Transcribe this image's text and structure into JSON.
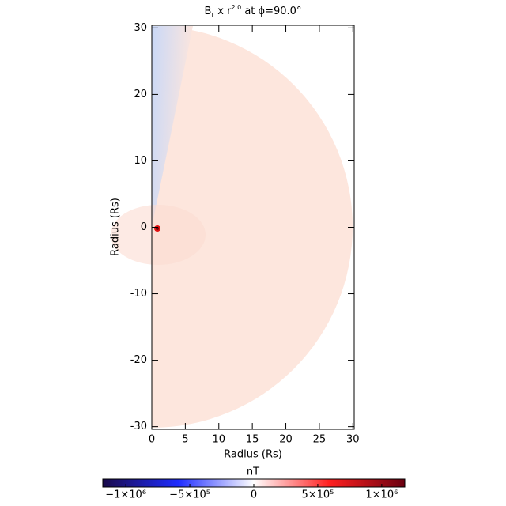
{
  "chart_data": {
    "type": "heatmap",
    "title_parts": [
      "B",
      "r",
      " x r",
      "2.0",
      " at ϕ=90.0°"
    ],
    "xlabel": "Radius (Rs)",
    "ylabel": "Radius (Rs)",
    "xlim": [
      0,
      30.2
    ],
    "xticks": [
      0,
      5,
      10,
      15,
      20,
      25,
      30
    ],
    "ylim": [
      -30.4,
      30.4
    ],
    "yticks": [
      -30,
      -20,
      -10,
      0,
      10,
      20,
      30
    ],
    "colorbar": {
      "label": "nT",
      "clim": [
        -1180000,
        1180000
      ],
      "ticks": [
        {
          "value": -1000000,
          "label": "−1×10⁶"
        },
        {
          "value": -500000,
          "label": "−5×10⁵"
        },
        0,
        {
          "value": 500000,
          "label": "5×10⁵"
        },
        {
          "value": 1000000,
          "label": "1×10⁶"
        }
      ],
      "colormap": [
        "#1a0a4a",
        "#1e2cff",
        "#ffffff",
        "#ff2020",
        "#6a0010"
      ]
    }
  }
}
